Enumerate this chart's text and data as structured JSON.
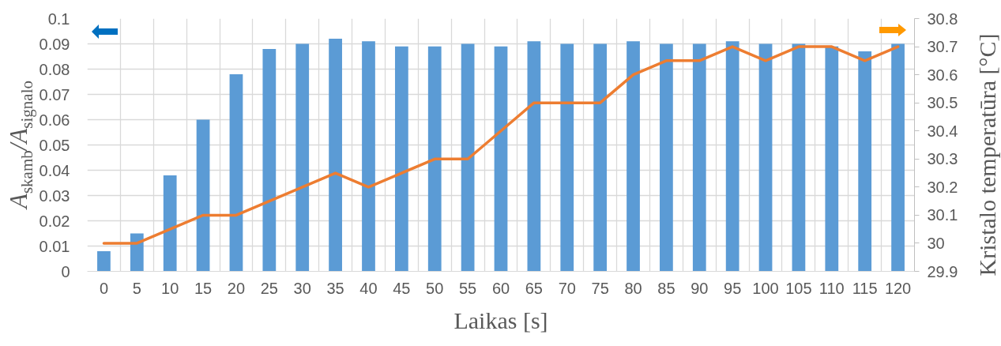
{
  "chart_data": {
    "type": "bar",
    "categories": [
      "0",
      "5",
      "10",
      "15",
      "20",
      "25",
      "30",
      "35",
      "40",
      "45",
      "50",
      "55",
      "60",
      "65",
      "70",
      "75",
      "80",
      "85",
      "90",
      "95",
      "100",
      "105",
      "110",
      "115",
      "120"
    ],
    "xlabel": "Laikas [s]",
    "ylabel": "A$_{skamb}$/A$_{signalo}$",
    "y2label": "Kristalo temperatūra [°C]",
    "ylim": [
      0,
      0.1
    ],
    "yticks": [
      0,
      0.01,
      0.02,
      0.03,
      0.04,
      0.05,
      0.06,
      0.07,
      0.08,
      0.09,
      0.1
    ],
    "y2lim": [
      29.9,
      30.8
    ],
    "y2ticks": [
      29.9,
      30,
      30.1,
      30.2,
      30.3,
      30.4,
      30.5,
      30.6,
      30.7,
      30.8
    ],
    "grid": true,
    "series": [
      {
        "color": "#5b9bd5",
        "values": [
          0.008,
          0.015,
          0.038,
          0.06,
          0.078,
          0.088,
          0.09,
          0.092,
          0.091,
          0.089,
          0.089,
          0.09,
          0.089,
          0.091,
          0.09,
          0.09,
          0.091,
          0.09,
          0.09,
          0.091,
          0.09,
          0.09,
          0.089,
          0.087,
          0.09
        ]
      },
      {
        "type": "line",
        "color": "#ed7d31",
        "axis": "y2",
        "values": [
          30.0,
          30.0,
          30.05,
          30.1,
          30.1,
          30.15,
          30.2,
          30.25,
          30.2,
          30.25,
          30.3,
          30.3,
          30.4,
          30.5,
          30.5,
          30.5,
          30.6,
          30.65,
          30.65,
          30.7,
          30.65,
          30.7,
          30.7,
          30.65,
          30.7
        ]
      }
    ]
  }
}
